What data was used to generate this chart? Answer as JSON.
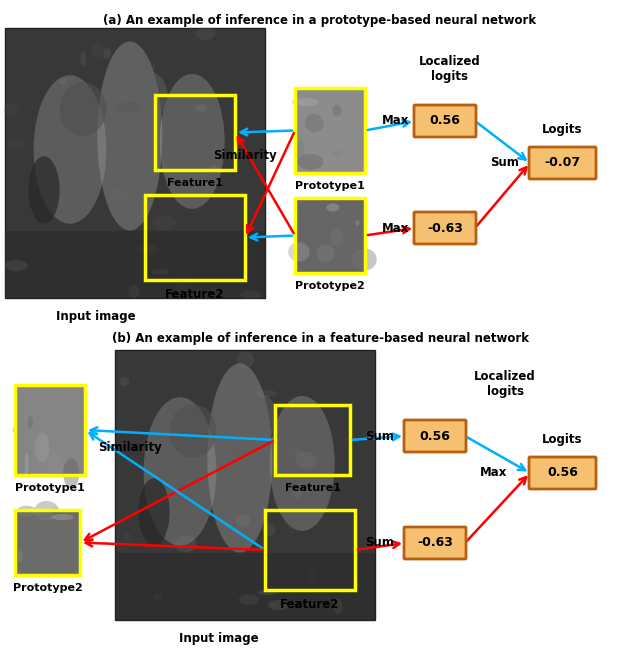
{
  "title_a": "(a) An example of inference in a prototype-based neural network",
  "title_b": "(b) An example of inference in a feature-based neural network",
  "bg_color": "#ffffff",
  "box_facecolor": "#f5c070",
  "box_edgecolor": "#b86010",
  "yellow_box_color": "#ffff00",
  "arrow_blue": "#00b0ff",
  "arrow_red": "#ff0000",
  "panel_a": {
    "logit1_val": "0.56",
    "logit2_val": "-0.63",
    "logits_val": "-0.07"
  },
  "panel_b": {
    "logit1_val": "0.56",
    "logit2_val": "-0.63",
    "logits_val": "0.56"
  }
}
